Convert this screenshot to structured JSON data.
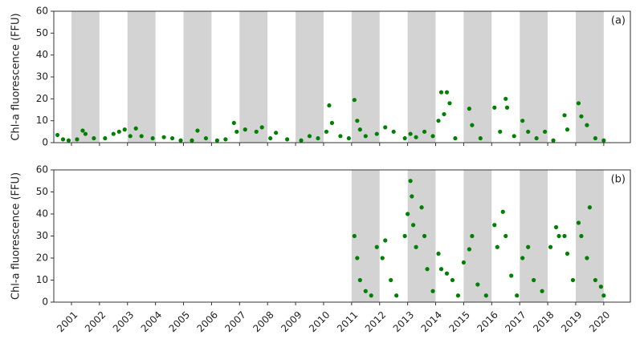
{
  "chart_data": [
    {
      "type": "scatter",
      "ylabel": "Chl-a fluorescence (FFU)",
      "annotation": "(a)",
      "color": "#008000",
      "xlim": [
        2000.37,
        2020.95
      ],
      "ylim": [
        0,
        60
      ],
      "yticks": [
        0,
        10,
        20,
        30,
        40,
        50,
        60
      ],
      "xticks": [
        2001,
        2002,
        2003,
        2004,
        2005,
        2006,
        2007,
        2008,
        2009,
        2010,
        2011,
        2012,
        2013,
        2014,
        2015,
        2016,
        2017,
        2018,
        2019,
        2020
      ],
      "xtick_labels": false,
      "shaded_spans": [
        [
          2001,
          2002
        ],
        [
          2003,
          2004
        ],
        [
          2005,
          2006
        ],
        [
          2007,
          2008
        ],
        [
          2009,
          2010
        ],
        [
          2011,
          2012
        ],
        [
          2013,
          2014
        ],
        [
          2015,
          2016
        ],
        [
          2017,
          2018
        ],
        [
          2019,
          2020
        ]
      ],
      "x": [
        2000.5,
        2000.7,
        2000.9,
        2001.2,
        2001.4,
        2001.5,
        2001.8,
        2002.2,
        2002.5,
        2002.7,
        2002.9,
        2003.1,
        2003.3,
        2003.5,
        2003.9,
        2004.3,
        2004.6,
        2004.9,
        2005.3,
        2005.5,
        2005.8,
        2006.2,
        2006.5,
        2006.8,
        2006.9,
        2007.2,
        2007.6,
        2007.8,
        2008.1,
        2008.3,
        2008.7,
        2009.2,
        2009.5,
        2009.8,
        2010.1,
        2010.2,
        2010.3,
        2010.6,
        2010.9,
        2011.1,
        2011.2,
        2011.3,
        2011.5,
        2011.9,
        2012.2,
        2012.5,
        2012.9,
        2013.1,
        2013.3,
        2013.6,
        2013.9,
        2014.1,
        2014.2,
        2014.3,
        2014.4,
        2014.5,
        2014.7,
        2015.2,
        2015.3,
        2015.6,
        2016.1,
        2016.3,
        2016.5,
        2016.55,
        2016.8,
        2017.1,
        2017.3,
        2017.6,
        2017.9,
        2018.2,
        2018.6,
        2018.7,
        2019.1,
        2019.2,
        2019.4,
        2019.7,
        2020.0
      ],
      "values": [
        3.5,
        1.5,
        1,
        1.5,
        5.5,
        4,
        2,
        2,
        4,
        5,
        6,
        3,
        6.5,
        3,
        2,
        2.5,
        2,
        1,
        1,
        5.5,
        2,
        1,
        1.5,
        9,
        5,
        6,
        5,
        7,
        2,
        4.5,
        1.5,
        1,
        3,
        2,
        5,
        17,
        9,
        3,
        2,
        19.5,
        10,
        6,
        3,
        4,
        7,
        5,
        2,
        4,
        2.5,
        5,
        3,
        10,
        23,
        13,
        23,
        18,
        2,
        15.5,
        8,
        2,
        16,
        5,
        20,
        16,
        3,
        10,
        5,
        2,
        5,
        1,
        12.5,
        6,
        18,
        12,
        8,
        2,
        1
      ]
    },
    {
      "type": "scatter",
      "ylabel": "Chl-a fluorescence (FFU)",
      "annotation": "(b)",
      "color": "#008000",
      "xlim": [
        2000.37,
        2020.95
      ],
      "ylim": [
        0,
        60
      ],
      "yticks": [
        0,
        10,
        20,
        30,
        40,
        50,
        60
      ],
      "xticks": [
        2001,
        2002,
        2003,
        2004,
        2005,
        2006,
        2007,
        2008,
        2009,
        2010,
        2011,
        2012,
        2013,
        2014,
        2015,
        2016,
        2017,
        2018,
        2019,
        2020
      ],
      "xtick_labels": true,
      "shaded_spans": [
        [
          2011,
          2012
        ],
        [
          2013,
          2014
        ],
        [
          2015,
          2016
        ],
        [
          2017,
          2018
        ],
        [
          2019,
          2020
        ]
      ],
      "x": [
        2011.1,
        2011.2,
        2011.3,
        2011.5,
        2011.7,
        2011.9,
        2012.1,
        2012.2,
        2012.4,
        2012.6,
        2012.9,
        2013.0,
        2013.1,
        2013.15,
        2013.2,
        2013.3,
        2013.5,
        2013.6,
        2013.7,
        2013.9,
        2014.1,
        2014.2,
        2014.4,
        2014.6,
        2014.8,
        2015.0,
        2015.2,
        2015.3,
        2015.5,
        2015.8,
        2016.1,
        2016.2,
        2016.4,
        2016.5,
        2016.7,
        2016.9,
        2017.1,
        2017.3,
        2017.5,
        2017.8,
        2018.1,
        2018.3,
        2018.4,
        2018.6,
        2018.7,
        2018.9,
        2019.1,
        2019.2,
        2019.4,
        2019.5,
        2019.7,
        2019.9,
        2020.0
      ],
      "values": [
        30,
        20,
        10,
        5,
        3,
        25,
        20,
        28,
        10,
        3,
        30,
        40,
        55,
        48,
        35,
        25,
        43,
        30,
        15,
        5,
        22,
        15,
        13,
        10,
        3,
        18,
        24,
        30,
        8,
        3,
        35,
        25,
        41,
        30,
        12,
        3,
        20,
        25,
        10,
        5,
        25,
        34,
        30,
        30,
        22,
        10,
        36,
        30,
        20,
        43,
        10,
        7,
        3
      ]
    }
  ]
}
